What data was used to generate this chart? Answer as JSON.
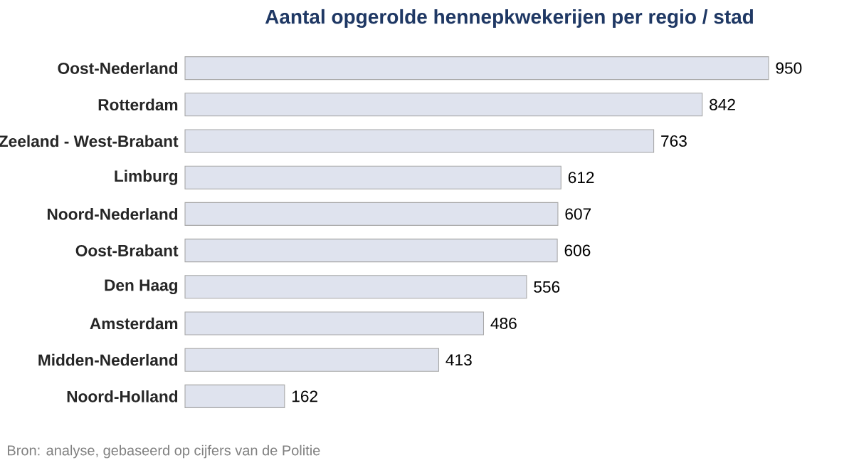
{
  "chart_data": {
    "type": "bar",
    "orientation": "horizontal",
    "title": "Aantal opgerolde hennepkwekerijen per regio / stad",
    "categories": [
      "Oost-Nederland",
      "Rotterdam",
      "Zeeland - West-Brabant",
      "Limburg",
      "Noord-Nederland",
      "Oost-Brabant",
      "Den Haag",
      "Amsterdam",
      "Midden-Nederland",
      "Noord-Holland"
    ],
    "values": [
      950,
      842,
      763,
      612,
      607,
      606,
      556,
      486,
      413,
      162
    ],
    "color": "#dfe3ee",
    "data_labels": true,
    "annotations": [
      "Bron: analyse, gebaseerd op cijfers van de Politie"
    ]
  }
}
